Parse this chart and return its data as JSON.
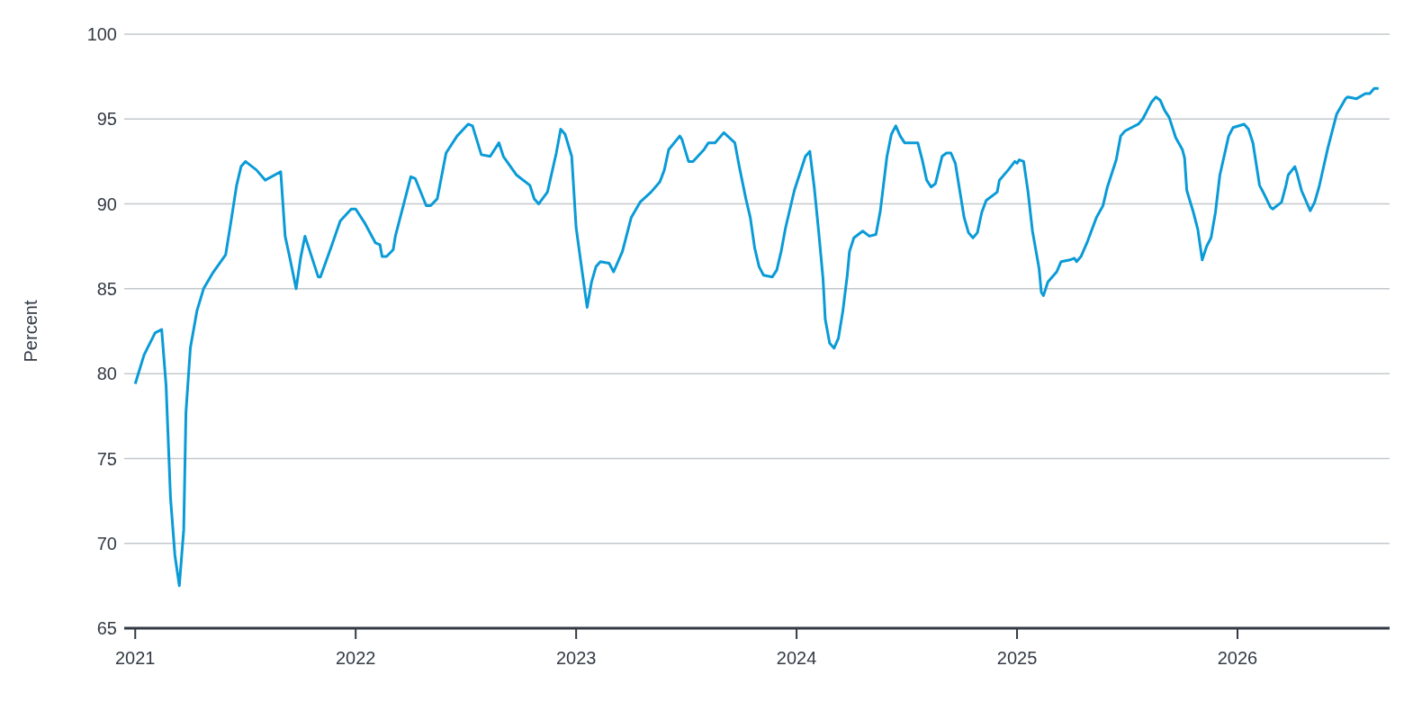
{
  "chart_data": {
    "type": "line",
    "ylabel": "Percent",
    "x": [
      2021.0,
      2021.04,
      2021.09,
      2021.12,
      2021.14,
      2021.16,
      2021.18,
      2021.2,
      2021.22,
      2021.23,
      2021.25,
      2021.28,
      2021.31,
      2021.35,
      2021.41,
      2021.43,
      2021.46,
      2021.48,
      2021.5,
      2021.55,
      2021.59,
      2021.66,
      2021.68,
      2021.7,
      2021.73,
      2021.75,
      2021.77,
      2021.83,
      2021.84,
      2021.89,
      2021.93,
      2021.98,
      2022.0,
      2022.04,
      2022.09,
      2022.11,
      2022.12,
      2022.14,
      2022.17,
      2022.18,
      2022.23,
      2022.25,
      2022.27,
      2022.32,
      2022.34,
      2022.37,
      2022.41,
      2022.46,
      2022.51,
      2022.53,
      2022.57,
      2022.61,
      2022.65,
      2022.67,
      2022.73,
      2022.79,
      2022.81,
      2022.83,
      2022.87,
      2022.91,
      2022.93,
      2022.95,
      2022.98,
      2023.0,
      2023.02,
      2023.05,
      2023.07,
      2023.09,
      2023.11,
      2023.15,
      2023.17,
      2023.21,
      2023.25,
      2023.29,
      2023.34,
      2023.38,
      2023.4,
      2023.42,
      2023.47,
      2023.48,
      2023.51,
      2023.53,
      2023.58,
      2023.6,
      2023.63,
      2023.67,
      2023.72,
      2023.74,
      2023.77,
      2023.79,
      2023.81,
      2023.83,
      2023.85,
      2023.89,
      2023.91,
      2023.93,
      2023.95,
      2023.99,
      2024.04,
      2024.06,
      2024.08,
      2024.1,
      2024.12,
      2024.13,
      2024.15,
      2024.17,
      2024.19,
      2024.21,
      2024.23,
      2024.24,
      2024.26,
      2024.3,
      2024.33,
      2024.36,
      2024.38,
      2024.41,
      2024.43,
      2024.45,
      2024.47,
      2024.49,
      2024.55,
      2024.57,
      2024.59,
      2024.61,
      2024.63,
      2024.66,
      2024.68,
      2024.7,
      2024.72,
      2024.74,
      2024.76,
      2024.78,
      2024.8,
      2024.82,
      2024.84,
      2024.86,
      2024.91,
      2024.92,
      2024.96,
      2024.99,
      2025.0,
      2025.01,
      2025.03,
      2025.05,
      2025.07,
      2025.1,
      2025.11,
      2025.12,
      2025.14,
      2025.18,
      2025.2,
      2025.24,
      2025.26,
      2025.27,
      2025.29,
      2025.32,
      2025.36,
      2025.39,
      2025.41,
      2025.45,
      2025.47,
      2025.49,
      2025.55,
      2025.57,
      2025.61,
      2025.63,
      2025.65,
      2025.67,
      2025.69,
      2025.71,
      2025.72,
      2025.75,
      2025.76,
      2025.77,
      2025.8,
      2025.82,
      2025.84,
      2025.86,
      2025.88,
      2025.9,
      2025.92,
      2025.96,
      2025.98,
      2026.03,
      2026.05,
      2026.07,
      2026.1,
      2026.12,
      2026.15,
      2026.16,
      2026.2,
      2026.22,
      2026.23,
      2026.26,
      2026.27,
      2026.29,
      2026.33,
      2026.35,
      2026.37,
      2026.41,
      2026.45,
      2026.49,
      2026.5,
      2026.54,
      2026.58,
      2026.6,
      2026.62,
      2026.64
    ],
    "series": [
      {
        "color": "#0a9bd7",
        "values": [
          79.4,
          81.1,
          82.4,
          82.6,
          79.3,
          72.7,
          69.3,
          67.5,
          70.8,
          77.7,
          81.5,
          83.7,
          85.0,
          85.9,
          87.0,
          88.6,
          91.1,
          92.2,
          92.5,
          92.0,
          91.4,
          91.9,
          88.1,
          86.9,
          85.0,
          86.8,
          88.1,
          85.7,
          85.7,
          87.5,
          89.0,
          89.7,
          89.7,
          88.9,
          87.7,
          87.6,
          86.9,
          86.9,
          87.3,
          88.1,
          90.6,
          91.6,
          91.5,
          89.9,
          89.9,
          90.3,
          93.0,
          94.0,
          94.7,
          94.6,
          92.9,
          92.8,
          93.6,
          92.8,
          91.7,
          91.1,
          90.3,
          90.0,
          90.7,
          93.0,
          94.4,
          94.1,
          92.8,
          88.6,
          86.7,
          83.9,
          85.4,
          86.3,
          86.6,
          86.5,
          86.0,
          87.2,
          89.2,
          90.1,
          90.7,
          91.3,
          92.0,
          93.2,
          94.0,
          93.8,
          92.5,
          92.5,
          93.2,
          93.6,
          93.6,
          94.2,
          93.6,
          92.2,
          90.3,
          89.2,
          87.4,
          86.3,
          85.8,
          85.7,
          86.1,
          87.2,
          88.6,
          90.8,
          92.8,
          93.1,
          91.0,
          88.4,
          85.6,
          83.2,
          81.8,
          81.5,
          82.1,
          83.7,
          85.8,
          87.2,
          88.0,
          88.4,
          88.1,
          88.2,
          89.6,
          92.8,
          94.1,
          94.6,
          94.0,
          93.6,
          93.6,
          92.6,
          91.4,
          91.0,
          91.2,
          92.8,
          93.0,
          93.0,
          92.4,
          90.8,
          89.2,
          88.3,
          88.0,
          88.3,
          89.5,
          90.2,
          90.7,
          91.4,
          92.0,
          92.5,
          92.4,
          92.6,
          92.5,
          90.7,
          88.4,
          86.2,
          84.8,
          84.6,
          85.4,
          86.0,
          86.6,
          86.7,
          86.8,
          86.6,
          86.9,
          87.8,
          89.2,
          89.9,
          91.0,
          92.6,
          94.0,
          94.3,
          94.7,
          95.0,
          96.0,
          96.3,
          96.1,
          95.5,
          95.1,
          94.3,
          93.9,
          93.2,
          92.7,
          90.8,
          89.5,
          88.5,
          86.7,
          87.5,
          88.0,
          89.5,
          91.7,
          94.0,
          94.5,
          94.7,
          94.4,
          93.6,
          91.1,
          90.6,
          89.8,
          89.7,
          90.1,
          91.1,
          91.7,
          92.2,
          91.8,
          90.8,
          89.6,
          90.1,
          91.0,
          93.3,
          95.3,
          96.2,
          96.3,
          96.2,
          96.5,
          96.5,
          96.8,
          96.8
        ]
      }
    ],
    "xlim": [
      2020.95,
      2026.69
    ],
    "xticks": [
      2021,
      2022,
      2023,
      2024,
      2025,
      2026
    ],
    "ylim": [
      65,
      100
    ],
    "yticks": [
      65,
      70,
      75,
      80,
      85,
      90,
      95,
      100
    ],
    "grid": "y",
    "legend": false,
    "marker": "none",
    "line_style": "solid"
  }
}
